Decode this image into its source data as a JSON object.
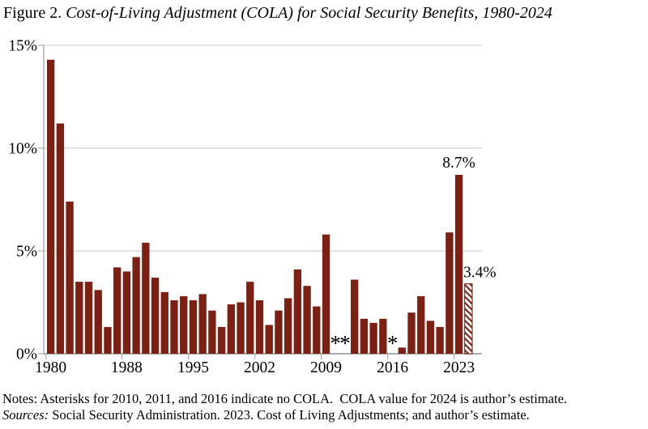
{
  "title": {
    "prefix": "Figure 2. ",
    "italic_part": "Cost-of-Living Adjustment (COLA) for Social Security Benefits, 1980-2024"
  },
  "notes": {
    "line1": "Notes: Asterisks for 2010, 2011, and 2016 indicate no COLA.  COLA value for 2024 is author’s estimate.",
    "line2_italic": "Sources:",
    "line2_rest": " Social Security Administration. 2023. Cost of Living Adjustments; and author’s estimate."
  },
  "chart_data": {
    "type": "bar",
    "title": "Figure 2. Cost-of-Living Adjustment (COLA) for Social Security Benefits, 1980-2024",
    "xlabel": "",
    "ylabel": "",
    "ylim": [
      0,
      15
    ],
    "grid": true,
    "ytick_labels": [
      "0%",
      "5%",
      "10%",
      "15%"
    ],
    "ytick_values": [
      0,
      5,
      10,
      15
    ],
    "xtick_years": [
      1980,
      1988,
      1995,
      2002,
      2009,
      2016,
      2023
    ],
    "bar_color": "#7B2012",
    "gridline_color": "#c6c6c6",
    "axis_color": "#9b9b9b",
    "no_cola_marker": "*",
    "no_cola_years": [
      2010,
      2011,
      2016
    ],
    "estimate_year": 2024,
    "annotations": [
      {
        "text": "8.7%",
        "year": 2023,
        "pos": "above-bar"
      },
      {
        "text": "3.4%",
        "year": 2024,
        "pos": "right-of-peak"
      }
    ],
    "series": [
      {
        "year": 1980,
        "value": 14.3
      },
      {
        "year": 1981,
        "value": 11.2
      },
      {
        "year": 1982,
        "value": 7.4
      },
      {
        "year": 1983,
        "value": 3.5
      },
      {
        "year": 1984,
        "value": 3.5
      },
      {
        "year": 1985,
        "value": 3.1
      },
      {
        "year": 1986,
        "value": 1.3
      },
      {
        "year": 1987,
        "value": 4.2
      },
      {
        "year": 1988,
        "value": 4.0
      },
      {
        "year": 1989,
        "value": 4.7
      },
      {
        "year": 1990,
        "value": 5.4
      },
      {
        "year": 1991,
        "value": 3.7
      },
      {
        "year": 1992,
        "value": 3.0
      },
      {
        "year": 1993,
        "value": 2.6
      },
      {
        "year": 1994,
        "value": 2.8
      },
      {
        "year": 1995,
        "value": 2.6
      },
      {
        "year": 1996,
        "value": 2.9
      },
      {
        "year": 1997,
        "value": 2.1
      },
      {
        "year": 1998,
        "value": 1.3
      },
      {
        "year": 1999,
        "value": 2.4
      },
      {
        "year": 2000,
        "value": 2.5
      },
      {
        "year": 2001,
        "value": 3.5
      },
      {
        "year": 2002,
        "value": 2.6
      },
      {
        "year": 2003,
        "value": 1.4
      },
      {
        "year": 2004,
        "value": 2.1
      },
      {
        "year": 2005,
        "value": 2.7
      },
      {
        "year": 2006,
        "value": 4.1
      },
      {
        "year": 2007,
        "value": 3.3
      },
      {
        "year": 2008,
        "value": 2.3
      },
      {
        "year": 2009,
        "value": 5.8
      },
      {
        "year": 2010,
        "value": null
      },
      {
        "year": 2011,
        "value": null
      },
      {
        "year": 2012,
        "value": 3.6
      },
      {
        "year": 2013,
        "value": 1.7
      },
      {
        "year": 2014,
        "value": 1.5
      },
      {
        "year": 2015,
        "value": 1.7
      },
      {
        "year": 2016,
        "value": null
      },
      {
        "year": 2017,
        "value": 0.3
      },
      {
        "year": 2018,
        "value": 2.0
      },
      {
        "year": 2019,
        "value": 2.8
      },
      {
        "year": 2020,
        "value": 1.6
      },
      {
        "year": 2021,
        "value": 1.3
      },
      {
        "year": 2022,
        "value": 5.9
      },
      {
        "year": 2023,
        "value": 8.7
      },
      {
        "year": 2024,
        "value": 3.4
      }
    ]
  }
}
